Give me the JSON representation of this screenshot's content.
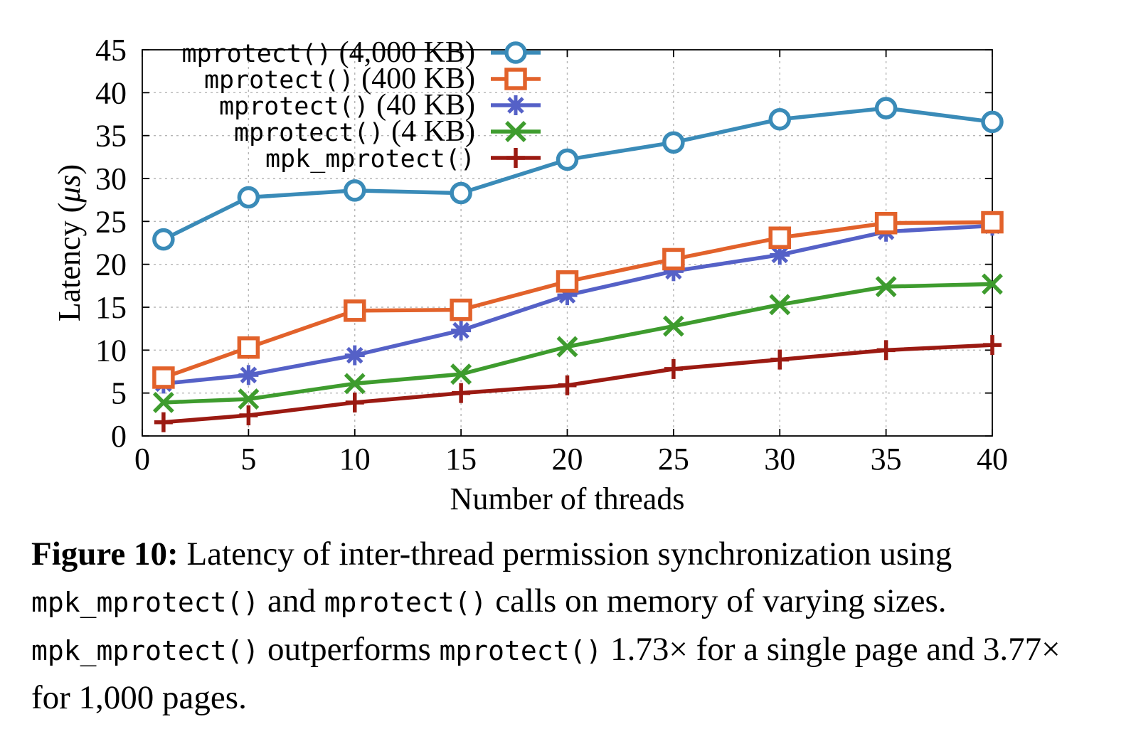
{
  "chart_data": {
    "type": "line",
    "xlabel": "Number of threads",
    "ylabel_main": "Latency (",
    "ylabel_unit": "μs",
    "ylabel_end": ")",
    "xlim": [
      0,
      40
    ],
    "ylim": [
      0,
      45
    ],
    "xticks": [
      "0",
      "5",
      "10",
      "15",
      "20",
      "25",
      "30",
      "35",
      "40"
    ],
    "yticks": [
      "0",
      "5",
      "10",
      "15",
      "20",
      "25",
      "30",
      "35",
      "40",
      "45"
    ],
    "grid": true,
    "legend_position": "top-left",
    "x": [
      1,
      5,
      10,
      15,
      20,
      25,
      30,
      35,
      40
    ],
    "series": [
      {
        "code": "mprotect()",
        "size": "(4,000 KB)",
        "marker": "circle",
        "color": "#3a8bb8",
        "values": [
          22.9,
          27.8,
          28.6,
          28.3,
          32.2,
          34.2,
          36.9,
          38.2,
          36.6
        ]
      },
      {
        "code": "mprotect()",
        "size": "(400 KB)",
        "marker": "square",
        "color": "#e2622b",
        "values": [
          6.8,
          10.3,
          14.6,
          14.7,
          18.0,
          20.6,
          23.1,
          24.8,
          24.9
        ]
      },
      {
        "code": "mprotect()",
        "size": "(40 KB)",
        "marker": "star",
        "color": "#5561c7",
        "values": [
          6.1,
          7.1,
          9.4,
          12.3,
          16.4,
          19.2,
          21.1,
          23.8,
          24.5
        ]
      },
      {
        "code": "mprotect()",
        "size": "(4 KB)",
        "marker": "x",
        "color": "#3e9c2e",
        "values": [
          3.9,
          4.3,
          6.1,
          7.2,
          10.4,
          12.8,
          15.3,
          17.4,
          17.7
        ]
      },
      {
        "code": "mpk_mprotect()",
        "size": "",
        "marker": "plus",
        "color": "#9b1a12",
        "values": [
          1.6,
          2.4,
          3.9,
          5.0,
          5.9,
          7.8,
          8.9,
          10.0,
          10.6
        ]
      }
    ]
  },
  "caption": {
    "label": "Figure 10:",
    "t1": " Latency of inter-thread permission synchronization using ",
    "c1": "mpk_mprotect()",
    "t2": " and ",
    "c2": "mprotect()",
    "t3": " calls on memory of varying sizes. ",
    "c3": "mpk_mprotect()",
    "t4": " outperforms ",
    "c4": "mprotect()",
    "t5": " 1.73× for a single page and 3.77× for 1,000 pages."
  }
}
